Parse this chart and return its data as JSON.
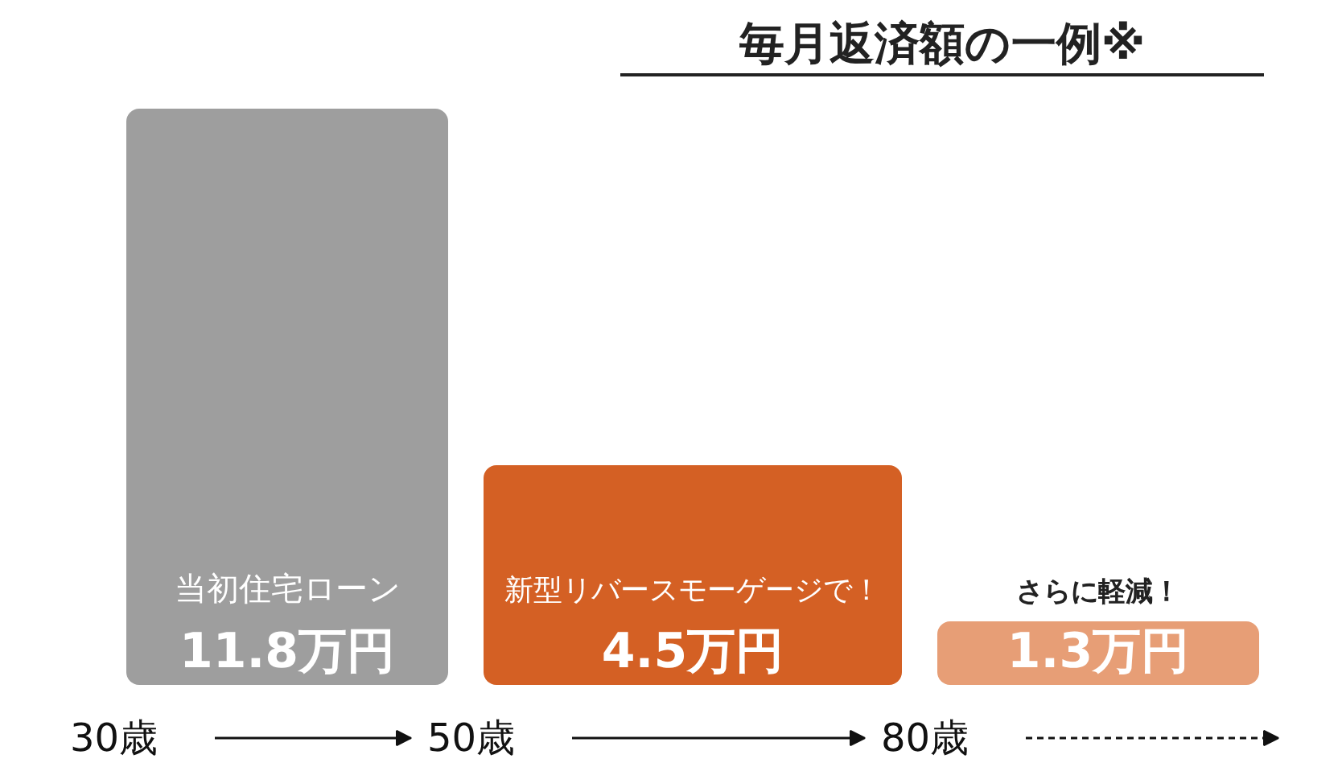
{
  "chart_data": {
    "type": "bar",
    "title": "毎月返済額の一例※",
    "categories": [
      "当初住宅ローン",
      "新型リバースモーゲージで！",
      "さらに軽減！"
    ],
    "values": [
      11.8,
      4.5,
      1.3
    ],
    "value_labels": [
      "11.8万円",
      "4.5万円",
      "1.3万円"
    ],
    "colors": [
      "#9e9e9e",
      "#d46024",
      "#e79e76"
    ],
    "annotations": [
      "30歳",
      "50歳",
      "80歳"
    ]
  }
}
